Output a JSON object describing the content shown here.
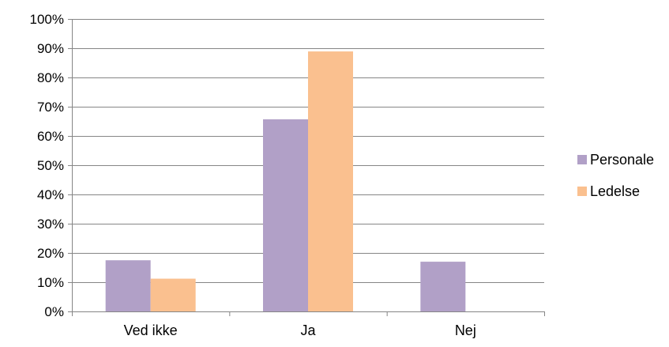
{
  "chart_data": {
    "type": "bar",
    "categories": [
      "Ved ikke",
      "Ja",
      "Nej"
    ],
    "series": [
      {
        "name": "Personale",
        "values": [
          0.175,
          0.657,
          0.17
        ],
        "color": "#B1A0C7"
      },
      {
        "name": "Ledelse",
        "values": [
          0.112,
          0.889,
          0.0
        ],
        "color": "#FAC08F"
      }
    ],
    "ylim": [
      0,
      1
    ],
    "y_ticks": [
      "0%",
      "10%",
      "20%",
      "30%",
      "40%",
      "50%",
      "60%",
      "70%",
      "80%",
      "90%",
      "100%"
    ],
    "grid": true,
    "legend": "right",
    "xlabel": "",
    "ylabel": "",
    "title": ""
  }
}
